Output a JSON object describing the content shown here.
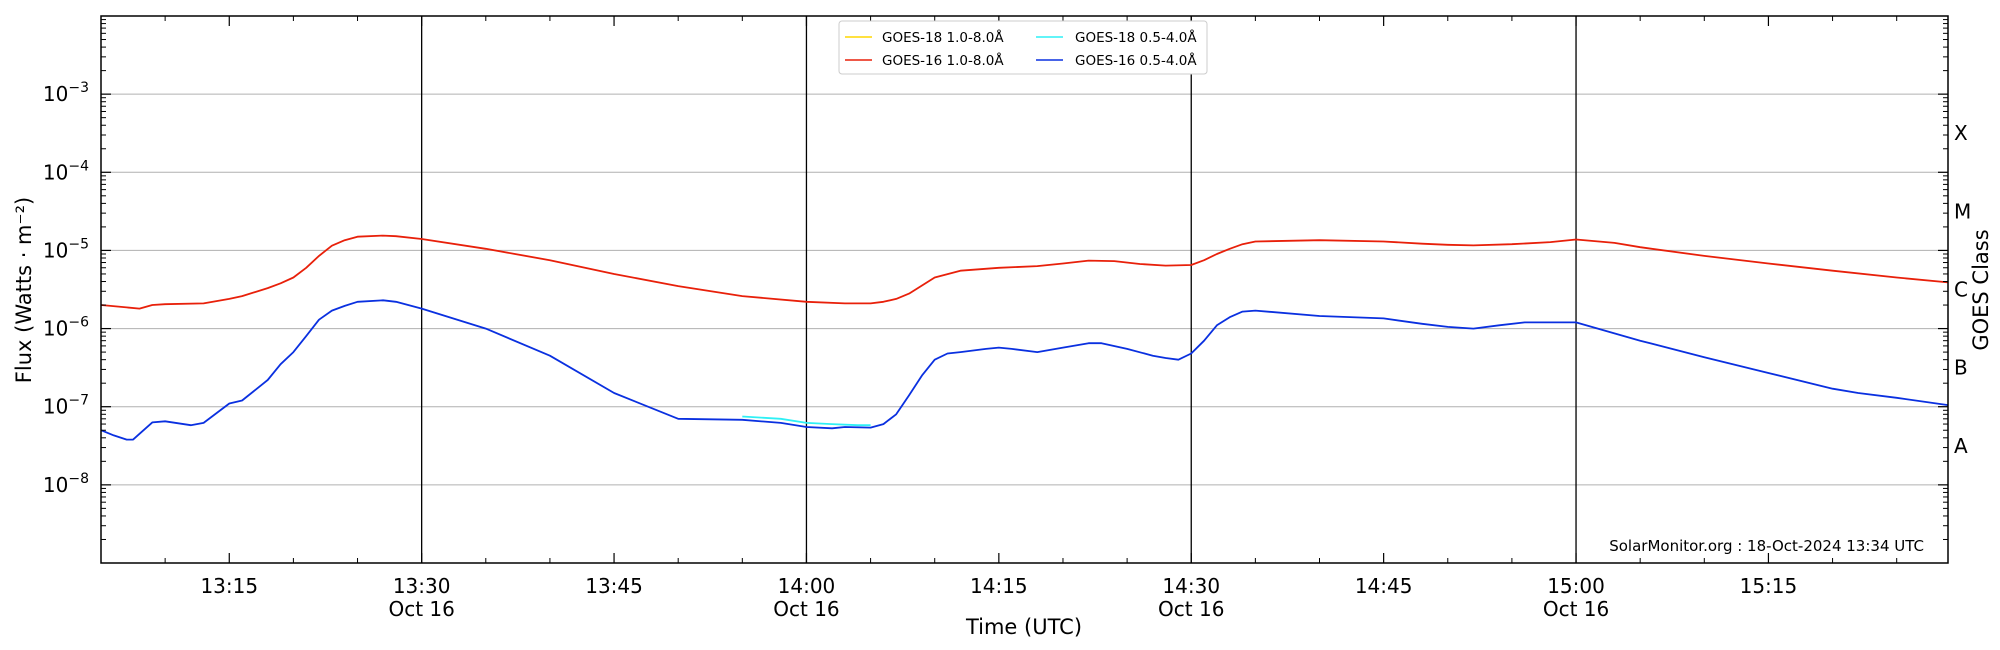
{
  "chart_data": {
    "type": "line",
    "xlabel": "Time (UTC)",
    "ylabel": "Flux (Watts · m⁻²)",
    "ylabel_right": "GOES Class",
    "y_scale": "log",
    "ylim": [
      1e-09,
      0.01
    ],
    "xlim": [
      "13:05",
      "15:29"
    ],
    "x_ticks": [
      {
        "time": "13:15",
        "label": "13:15",
        "sub": ""
      },
      {
        "time": "13:30",
        "label": "13:30",
        "sub": "Oct 16"
      },
      {
        "time": "13:45",
        "label": "13:45",
        "sub": ""
      },
      {
        "time": "14:00",
        "label": "14:00",
        "sub": "Oct 16"
      },
      {
        "time": "14:15",
        "label": "14:15",
        "sub": ""
      },
      {
        "time": "14:30",
        "label": "14:30",
        "sub": "Oct 16"
      },
      {
        "time": "14:45",
        "label": "14:45",
        "sub": ""
      },
      {
        "time": "15:00",
        "label": "15:00",
        "sub": "Oct 16"
      },
      {
        "time": "15:15",
        "label": "15:15",
        "sub": ""
      }
    ],
    "vertical_lines": [
      "13:30",
      "14:00",
      "14:30",
      "15:00"
    ],
    "y_ticks": [
      {
        "exp": -8,
        "label_base": "10",
        "label_exp": "−8"
      },
      {
        "exp": -7,
        "label_base": "10",
        "label_exp": "−7"
      },
      {
        "exp": -6,
        "label_base": "10",
        "label_exp": "−6"
      },
      {
        "exp": -5,
        "label_base": "10",
        "label_exp": "−5"
      },
      {
        "exp": -4,
        "label_base": "10",
        "label_exp": "−4"
      },
      {
        "exp": -3,
        "label_base": "10",
        "label_exp": "−3"
      }
    ],
    "goes_classes": [
      {
        "label": "A",
        "exp": -7.5
      },
      {
        "label": "B",
        "exp": -6.5
      },
      {
        "label": "C",
        "exp": -5.5
      },
      {
        "label": "M",
        "exp": -4.5
      },
      {
        "label": "X",
        "exp": -3.5
      }
    ],
    "grid": true,
    "legend_position": "top-center",
    "credit": "SolarMonitor.org : 18-Oct-2024 13:34 UTC",
    "series": [
      {
        "name": "GOES-18 1.0-8.0Å",
        "color": "#ffd700",
        "x": [],
        "y": []
      },
      {
        "name": "GOES-16 1.0-8.0Å",
        "color": "#e8200a",
        "x": [
          "13:05",
          "13:08",
          "13:09",
          "13:10",
          "13:13",
          "13:15",
          "13:16",
          "13:18",
          "13:19",
          "13:20",
          "13:21",
          "13:22",
          "13:23",
          "13:24",
          "13:25",
          "13:27",
          "13:28",
          "13:30",
          "13:35",
          "13:40",
          "13:45",
          "13:50",
          "13:55",
          "14:00",
          "14:03",
          "14:05",
          "14:06",
          "14:07",
          "14:08",
          "14:10",
          "14:12",
          "14:15",
          "14:18",
          "14:20",
          "14:22",
          "14:24",
          "14:26",
          "14:28",
          "14:30",
          "14:31",
          "14:32",
          "14:33",
          "14:34",
          "14:35",
          "14:40",
          "14:45",
          "14:48",
          "14:50",
          "14:52",
          "14:55",
          "14:58",
          "15:00",
          "15:03",
          "15:05",
          "15:10",
          "15:15",
          "15:20",
          "15:25",
          "15:29"
        ],
        "y": [
          2e-06,
          1.8e-06,
          2e-06,
          2.05e-06,
          2.1e-06,
          2.4e-06,
          2.6e-06,
          3.3e-06,
          3.8e-06,
          4.5e-06,
          6e-06,
          8.5e-06,
          1.15e-05,
          1.35e-05,
          1.5e-05,
          1.55e-05,
          1.52e-05,
          1.4e-05,
          1.05e-05,
          7.5e-06,
          5e-06,
          3.5e-06,
          2.6e-06,
          2.2e-06,
          2.1e-06,
          2.1e-06,
          2.2e-06,
          2.4e-06,
          2.8e-06,
          4.5e-06,
          5.5e-06,
          6e-06,
          6.3e-06,
          6.8e-06,
          7.4e-06,
          7.3e-06,
          6.7e-06,
          6.4e-06,
          6.5e-06,
          7.5e-06,
          9e-06,
          1.05e-05,
          1.2e-05,
          1.3e-05,
          1.35e-05,
          1.3e-05,
          1.22e-05,
          1.18e-05,
          1.16e-05,
          1.2e-05,
          1.28e-05,
          1.38e-05,
          1.25e-05,
          1.1e-05,
          8.5e-06,
          6.8e-06,
          5.5e-06,
          4.5e-06,
          3.9e-06
        ]
      },
      {
        "name": "GOES-18 0.5-4.0Å",
        "color": "#2ff0f5",
        "x": [
          "13:55",
          "13:58",
          "14:00",
          "14:02",
          "14:04",
          "14:05"
        ],
        "y": [
          7.5e-08,
          7e-08,
          6.2e-08,
          6e-08,
          5.8e-08,
          5.8e-08
        ]
      },
      {
        "name": "GOES-16 0.5-4.0Å",
        "color": "#0a30e0",
        "x": [
          "13:05",
          "13:06",
          "13:07",
          "13:07.5",
          "13:08",
          "13:09",
          "13:10",
          "13:12",
          "13:13",
          "13:15",
          "13:16",
          "13:18",
          "13:19",
          "13:20",
          "13:21",
          "13:22",
          "13:23",
          "13:24",
          "13:25",
          "13:27",
          "13:28",
          "13:30",
          "13:35",
          "13:40",
          "13:45",
          "13:50",
          "13:55",
          "13:58",
          "14:00",
          "14:02",
          "14:03",
          "14:05",
          "14:06",
          "14:07",
          "14:08",
          "14:09",
          "14:10",
          "14:11",
          "14:12",
          "14:14",
          "14:15",
          "14:16",
          "14:18",
          "14:20",
          "14:22",
          "14:23",
          "14:25",
          "14:27",
          "14:28",
          "14:29",
          "14:30",
          "14:31",
          "14:32",
          "14:33",
          "14:34",
          "14:35",
          "14:40",
          "14:45",
          "14:48",
          "14:50",
          "14:52",
          "14:54",
          "14:56",
          "14:58",
          "15:00",
          "15:05",
          "15:10",
          "15:15",
          "15:20",
          "15:22",
          "15:25",
          "15:29"
        ],
        "y": [
          5e-08,
          4.3e-08,
          3.8e-08,
          3.8e-08,
          4.5e-08,
          6.3e-08,
          6.5e-08,
          5.8e-08,
          6.2e-08,
          1.1e-07,
          1.2e-07,
          2.2e-07,
          3.5e-07,
          5e-07,
          8e-07,
          1.3e-06,
          1.7e-06,
          1.95e-06,
          2.2e-06,
          2.3e-06,
          2.2e-06,
          1.8e-06,
          1e-06,
          4.5e-07,
          1.5e-07,
          7e-08,
          6.8e-08,
          6.2e-08,
          5.5e-08,
          5.3e-08,
          5.5e-08,
          5.4e-08,
          6e-08,
          8e-08,
          1.4e-07,
          2.5e-07,
          4e-07,
          4.8e-07,
          5e-07,
          5.5e-07,
          5.7e-07,
          5.5e-07,
          5e-07,
          5.7e-07,
          6.5e-07,
          6.5e-07,
          5.5e-07,
          4.5e-07,
          4.2e-07,
          4e-07,
          4.8e-07,
          7e-07,
          1.1e-06,
          1.4e-06,
          1.65e-06,
          1.7e-06,
          1.45e-06,
          1.35e-06,
          1.15e-06,
          1.05e-06,
          1e-06,
          1.1e-06,
          1.2e-06,
          1.2e-06,
          1.2e-06,
          7e-07,
          4.3e-07,
          2.7e-07,
          1.7e-07,
          1.5e-07,
          1.3e-07,
          1.05e-07
        ]
      }
    ]
  }
}
